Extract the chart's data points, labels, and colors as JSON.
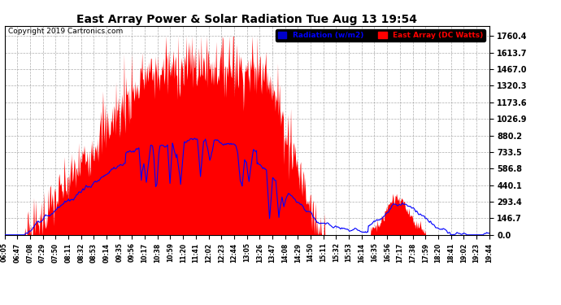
{
  "title": "East Array Power & Solar Radiation Tue Aug 13 19:54",
  "copyright": "Copyright 2019 Cartronics.com",
  "legend_labels": [
    "Radiation (w/m2)",
    "East Array (DC Watts)"
  ],
  "legend_colors": [
    "#0000cc",
    "#ff0000"
  ],
  "yticks": [
    0.0,
    146.7,
    293.4,
    440.1,
    586.8,
    733.5,
    880.2,
    1026.9,
    1173.6,
    1320.3,
    1467.0,
    1613.7,
    1760.4
  ],
  "ylim": [
    0.0,
    1850.0
  ],
  "x_labels": [
    "06:05",
    "06:47",
    "07:08",
    "07:29",
    "07:50",
    "08:11",
    "08:32",
    "08:53",
    "09:14",
    "09:35",
    "09:56",
    "10:17",
    "10:38",
    "10:59",
    "11:20",
    "11:41",
    "12:02",
    "12:23",
    "12:44",
    "13:05",
    "13:26",
    "13:47",
    "14:08",
    "14:29",
    "14:50",
    "15:11",
    "15:32",
    "15:53",
    "16:14",
    "16:35",
    "16:56",
    "17:17",
    "17:38",
    "17:59",
    "18:20",
    "18:41",
    "19:02",
    "19:23",
    "19:44"
  ],
  "n_points": 780,
  "seed": 7
}
